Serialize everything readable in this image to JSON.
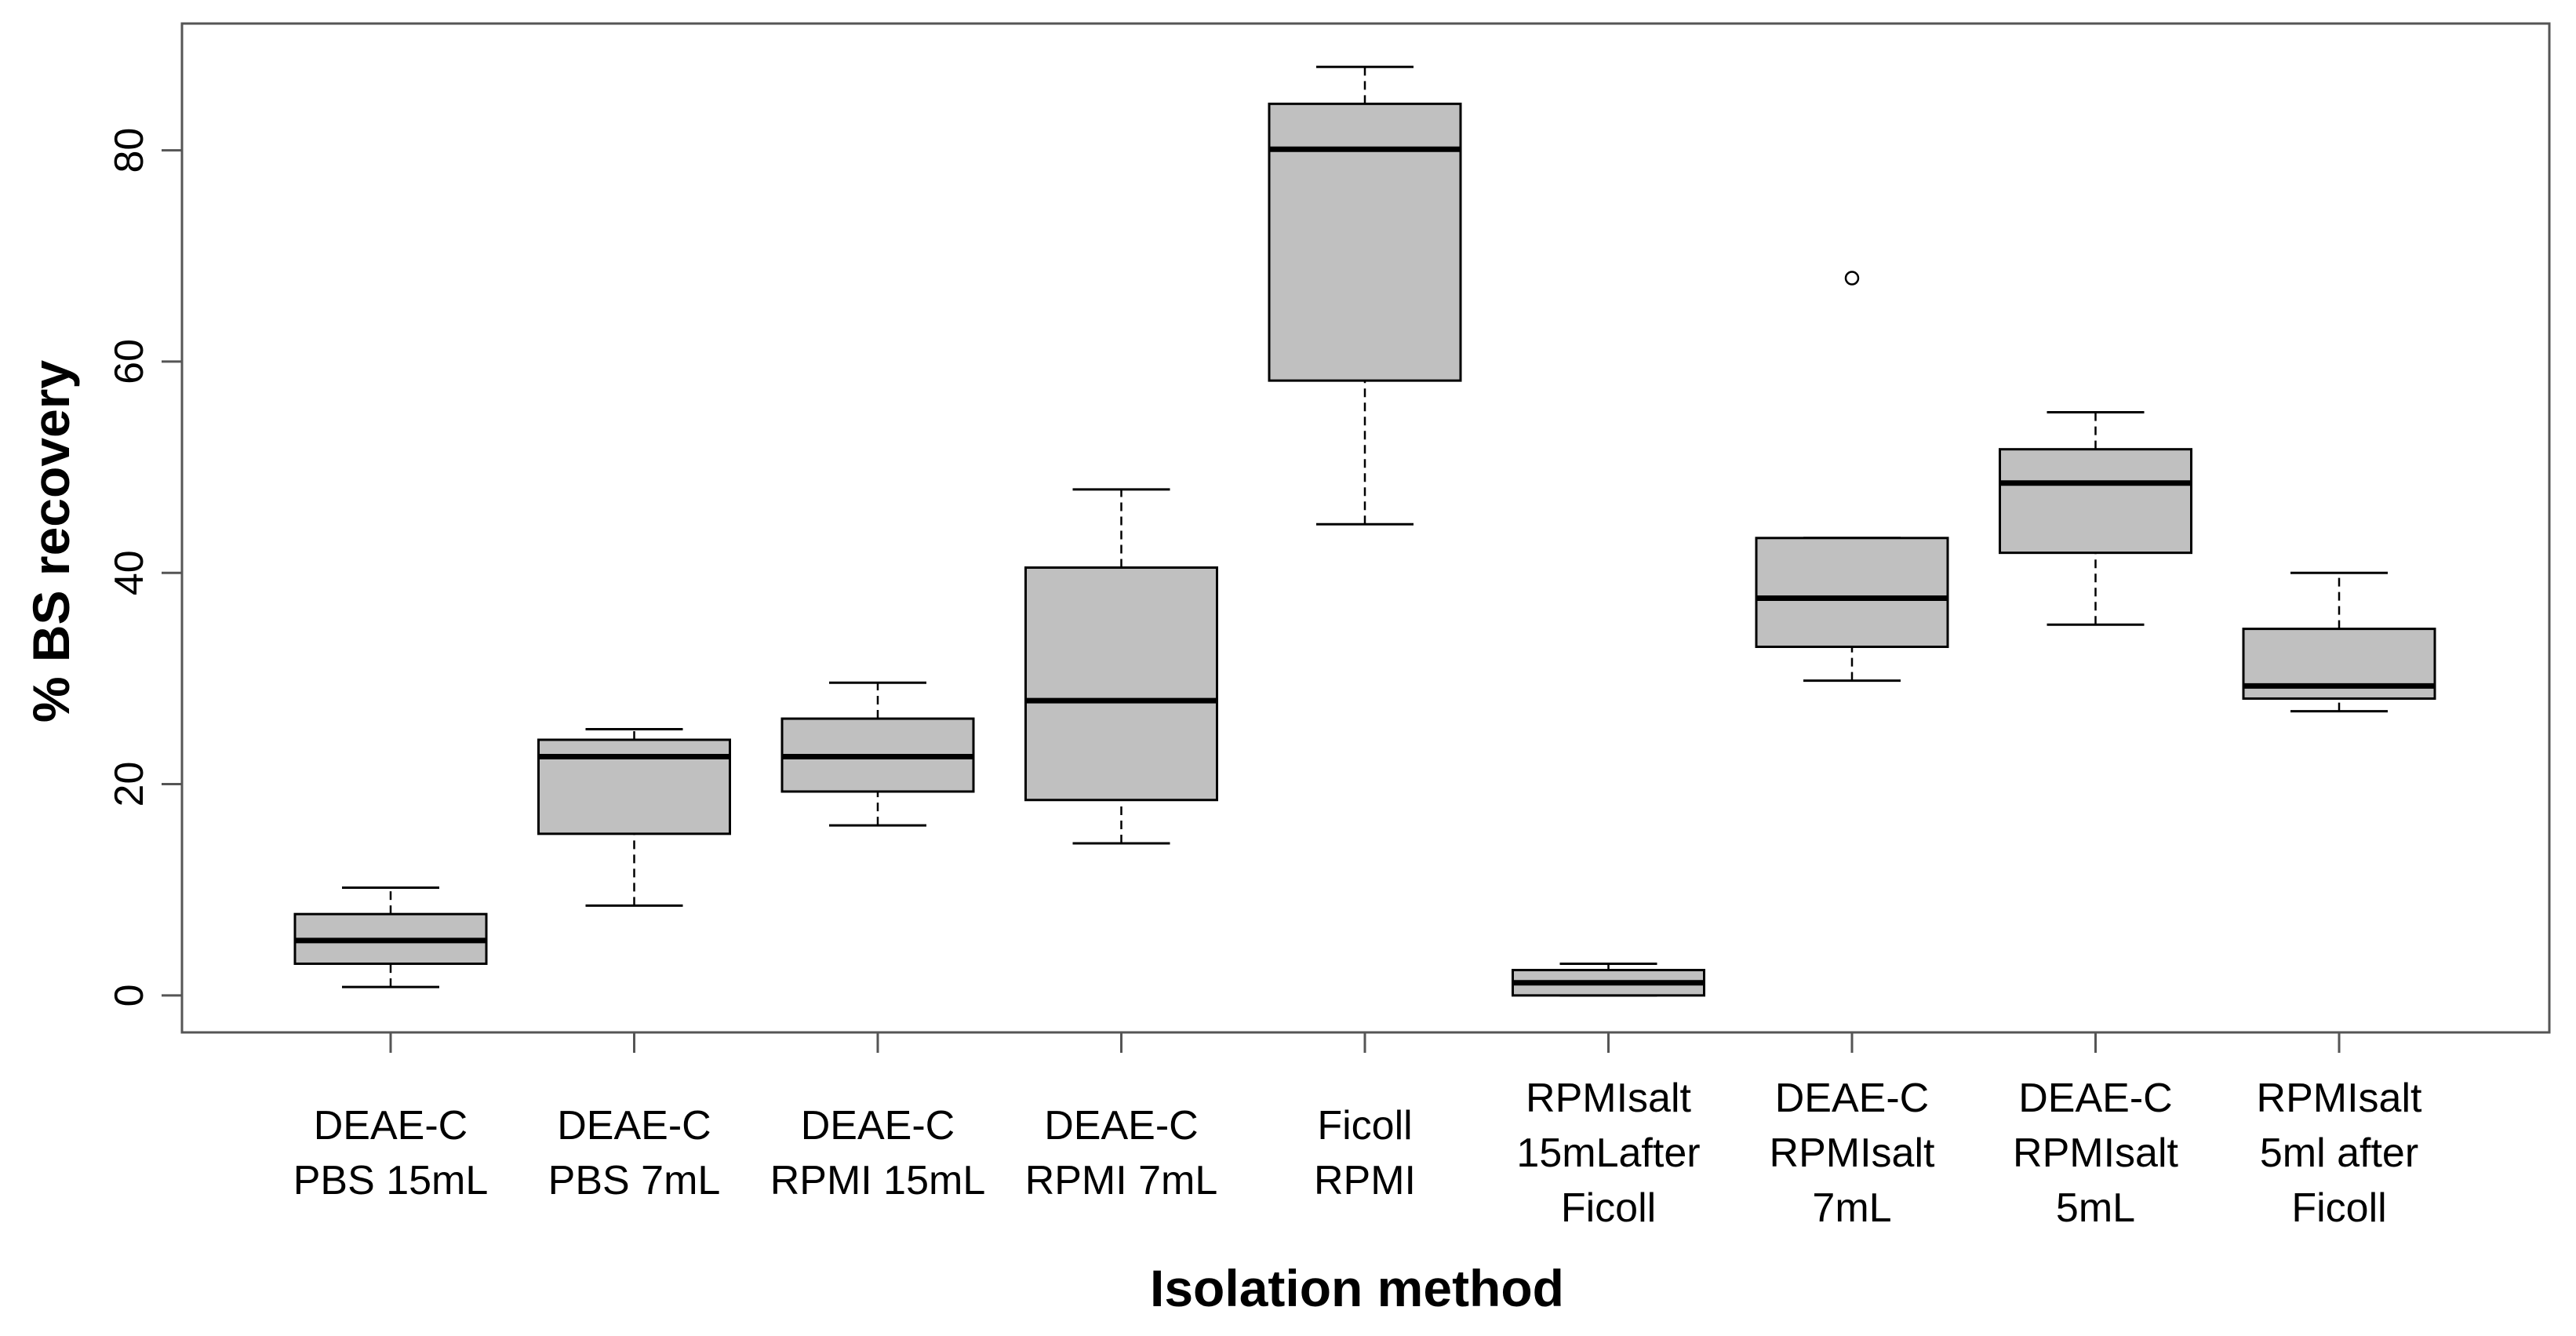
{
  "chart_data": {
    "type": "box",
    "title": "",
    "xlabel": "Isolation method",
    "ylabel": "% BS recovery",
    "ylim": [
      -3.5,
      92
    ],
    "yticks": [
      0,
      20,
      40,
      60,
      80
    ],
    "grid": false,
    "legend": "none",
    "box_fill": "#c0c0c0",
    "categories": [
      {
        "lines": [
          "DEAE-C",
          "PBS 15mL"
        ],
        "min": 0.8,
        "q1": 3.0,
        "median": 5.2,
        "q3": 7.7,
        "max": 10.2,
        "outliers": []
      },
      {
        "lines": [
          "DEAE-C",
          "PBS 7mL"
        ],
        "min": 8.5,
        "q1": 15.3,
        "median": 22.6,
        "q3": 24.2,
        "max": 25.2,
        "outliers": []
      },
      {
        "lines": [
          "DEAE-C",
          "RPMI 15mL"
        ],
        "min": 16.1,
        "q1": 19.3,
        "median": 22.6,
        "q3": 26.2,
        "max": 29.6,
        "outliers": []
      },
      {
        "lines": [
          "DEAE-C",
          "RPMI 7mL"
        ],
        "min": 14.4,
        "q1": 18.5,
        "median": 27.9,
        "q3": 40.5,
        "max": 47.9,
        "outliers": []
      },
      {
        "lines": [
          "Ficoll",
          "RPMI"
        ],
        "min": 44.6,
        "q1": 58.2,
        "median": 80.1,
        "q3": 84.4,
        "max": 87.9,
        "outliers": []
      },
      {
        "lines": [
          "RPMIsalt",
          "15mLafter",
          "Ficoll"
        ],
        "min": 0.0,
        "q1": 0.0,
        "median": 1.2,
        "q3": 2.4,
        "max": 3.0,
        "outliers": []
      },
      {
        "lines": [
          "DEAE-C",
          "RPMIsalt",
          "7mL"
        ],
        "min": 29.8,
        "q1": 33.0,
        "median": 37.6,
        "q3": 43.3,
        "max": 43.3,
        "outliers": [
          67.9
        ]
      },
      {
        "lines": [
          "DEAE-C",
          "RPMIsalt",
          "5mL"
        ],
        "min": 35.1,
        "q1": 41.9,
        "median": 48.5,
        "q3": 51.7,
        "max": 55.2,
        "outliers": []
      },
      {
        "lines": [
          "RPMIsalt",
          "5ml after",
          "Ficoll"
        ],
        "min": 26.9,
        "q1": 28.1,
        "median": 29.3,
        "q3": 34.7,
        "max": 40.0,
        "outliers": []
      }
    ]
  }
}
